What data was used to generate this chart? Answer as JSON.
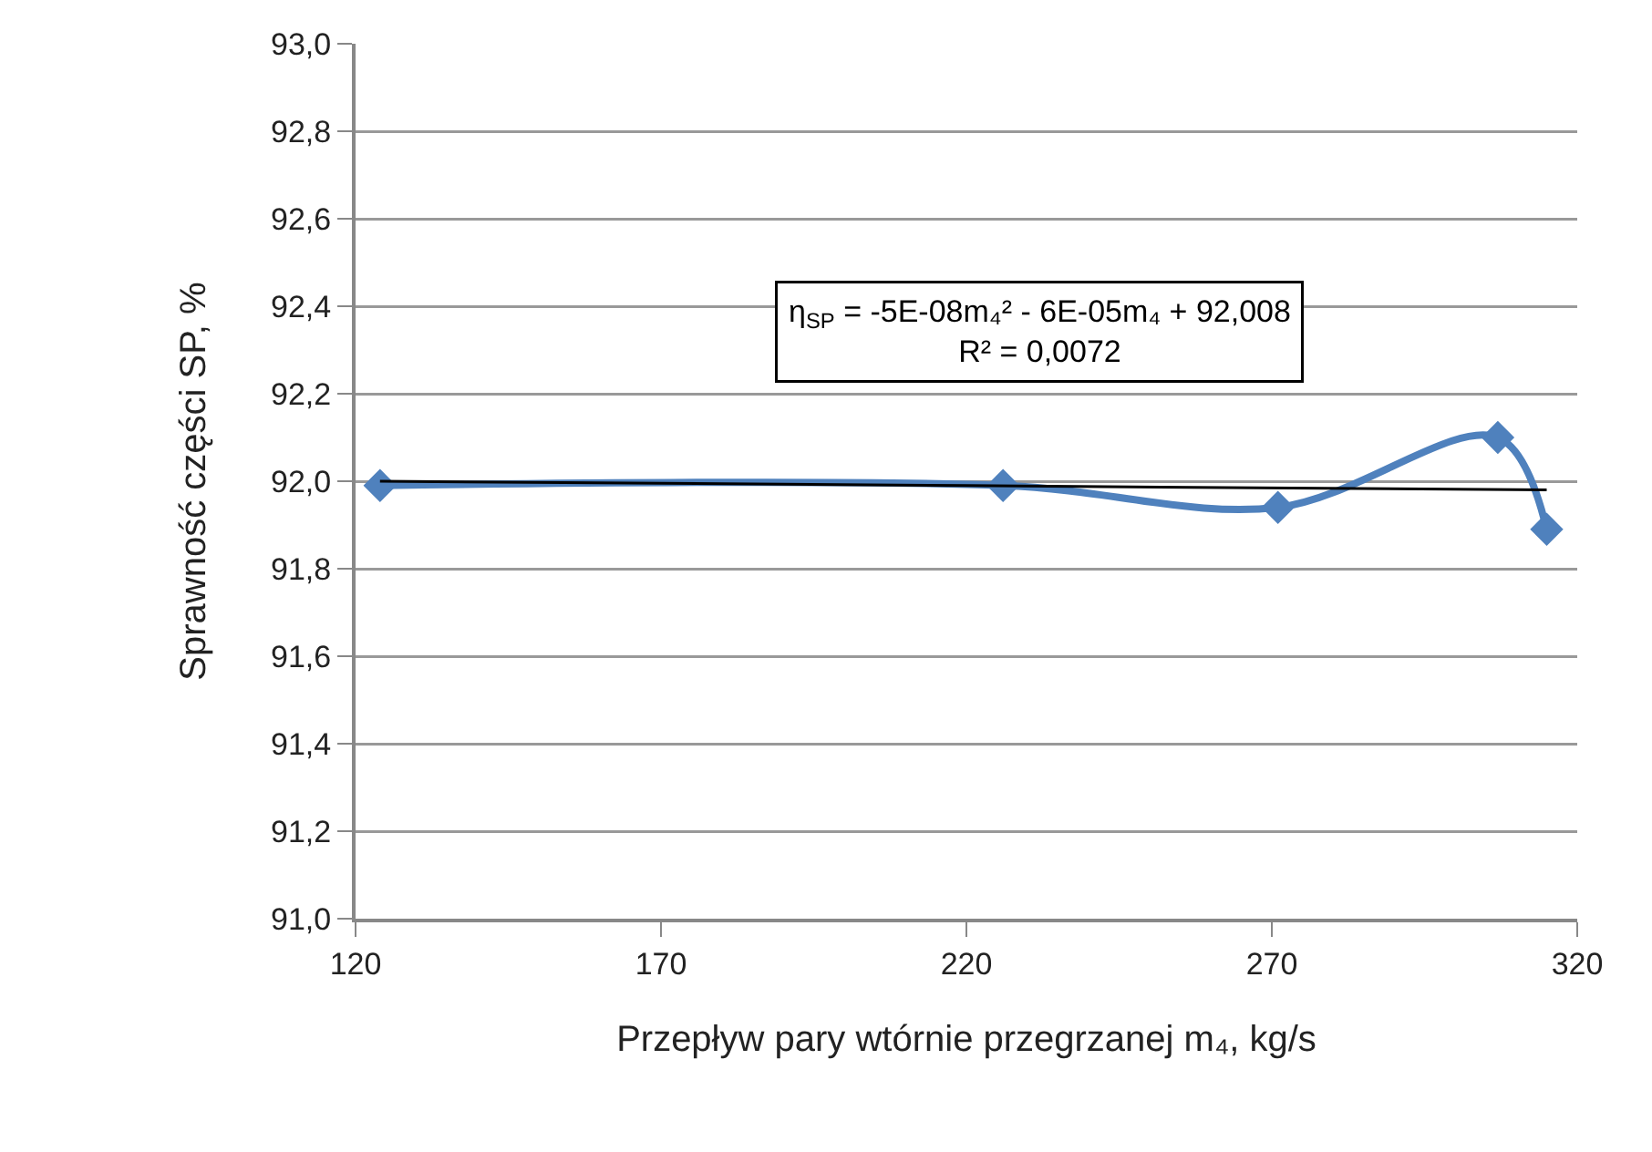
{
  "chart_data": {
    "type": "line",
    "xlabel": "Przepływ pary wtórnie przegrzanej m₄, kg/s",
    "ylabel": "Sprawność części SP, %",
    "x": [
      124,
      226,
      271,
      307,
      315
    ],
    "series": [
      {
        "color": "#4f81bd",
        "values": [
          91.99,
          91.99,
          91.94,
          92.1,
          91.89
        ],
        "marker": "diamond"
      },
      {
        "type": "line",
        "color": "#000000",
        "x": [
          124,
          220,
          315
        ],
        "values": [
          92.0,
          91.99,
          91.98
        ],
        "marker": "none"
      }
    ],
    "annotations": [
      "η$_{SP}$ = -5E-08m₄² - 6E-05m₄ + 92,008\nR² = 0,0072"
    ],
    "xlim": [
      120,
      320
    ],
    "xticks": [
      120,
      170,
      220,
      270,
      320
    ],
    "ylim": [
      91,
      93
    ],
    "yticks": [
      {
        "value": 91,
        "label": "91,0"
      },
      {
        "value": 91.2,
        "label": "91,2"
      },
      {
        "value": 91.4,
        "label": "91,4"
      },
      {
        "value": 91.6,
        "label": "91,6"
      },
      {
        "value": 91.8,
        "label": "91,8"
      },
      {
        "value": 92,
        "label": "92,0"
      },
      {
        "value": 92.2,
        "label": "92,2"
      },
      {
        "value": 92.4,
        "label": "92,4"
      },
      {
        "value": 92.6,
        "label": "92,6"
      },
      {
        "value": 92.8,
        "label": "92,8"
      },
      {
        "value": 93,
        "label": "93,0"
      }
    ],
    "grid": "y"
  }
}
